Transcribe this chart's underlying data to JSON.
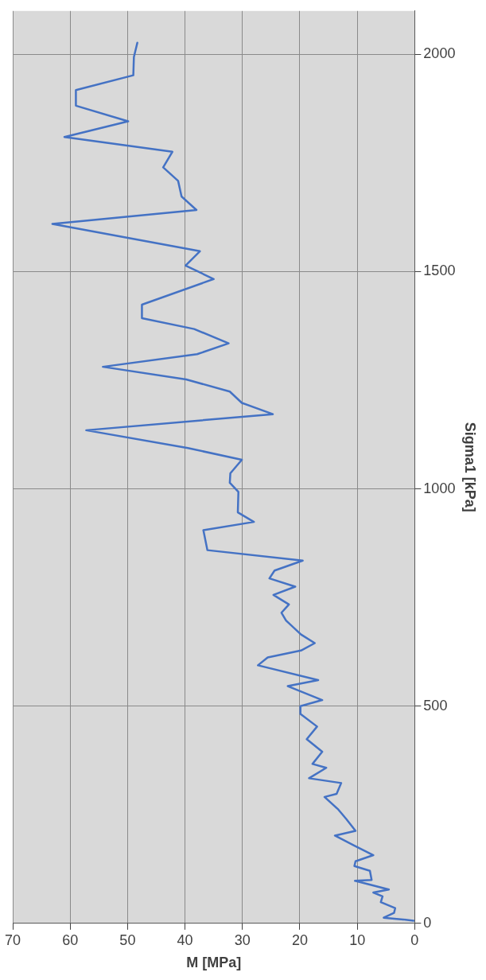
{
  "chart_data": {
    "type": "line",
    "xlabel": "M [MPa]",
    "ylabel": "Sigma1 [kPa]",
    "x": [
      0.2,
      2.0,
      5.4,
      3.6,
      3.4,
      5.9,
      5.6,
      7.2,
      4.5,
      10.4,
      7.5,
      7.8,
      10.5,
      10.3,
      7.2,
      10.5,
      13.9,
      10.3,
      11.9,
      13.3,
      15.7,
      13.6,
      12.8,
      18.4,
      15.4,
      17.8,
      16.1,
      18.8,
      17.0,
      19.9,
      19.9,
      16.1,
      22.1,
      16.8,
      27.3,
      25.6,
      19.8,
      17.4,
      19.8,
      22.4,
      23.2,
      21.9,
      24.6,
      20.8,
      25.3,
      24.4,
      19.5,
      36.1,
      36.8,
      28.0,
      30.8,
      30.7,
      32.2,
      32.1,
      30.1,
      39.5,
      57.2,
      24.7,
      30.1,
      32.2,
      39.8,
      54.3,
      37.9,
      32.4,
      38.4,
      47.5,
      47.5,
      35.0,
      39.9,
      37.4,
      63.1,
      38.0,
      40.6,
      41.2,
      43.8,
      42.2,
      61.0,
      49.9,
      59.0,
      59.0,
      49.0,
      48.9,
      48.3
    ],
    "series": [
      {
        "color": "#4472c4",
        "values": [
          6,
          9,
          13,
          24,
          35,
          49,
          62,
          71,
          78,
          98,
          100,
          121,
          132,
          143,
          157,
          179,
          202,
          213,
          240,
          262,
          291,
          298,
          323,
          334,
          358,
          367,
          395,
          424,
          453,
          482,
          500,
          514,
          546,
          560,
          594,
          612,
          628,
          645,
          665,
          697,
          715,
          734,
          756,
          775,
          794,
          812,
          835,
          859,
          905,
          924,
          946,
          993,
          1014,
          1036,
          1067,
          1094,
          1135,
          1172,
          1198,
          1224,
          1252,
          1281,
          1310,
          1335,
          1368,
          1393,
          1424,
          1483,
          1514,
          1547,
          1610,
          1642,
          1673,
          1709,
          1740,
          1776,
          1810,
          1846,
          1882,
          1918,
          1952,
          1994,
          2027
        ]
      }
    ],
    "xlim": [
      70,
      0
    ],
    "xticks": [
      0,
      10,
      20,
      30,
      40,
      50,
      60,
      70
    ],
    "ylim": [
      0,
      2100
    ],
    "yticks": [
      0,
      500,
      1000,
      1500,
      2000
    ],
    "grid": true,
    "legend": false,
    "marker": "none",
    "line_style": "solid"
  }
}
